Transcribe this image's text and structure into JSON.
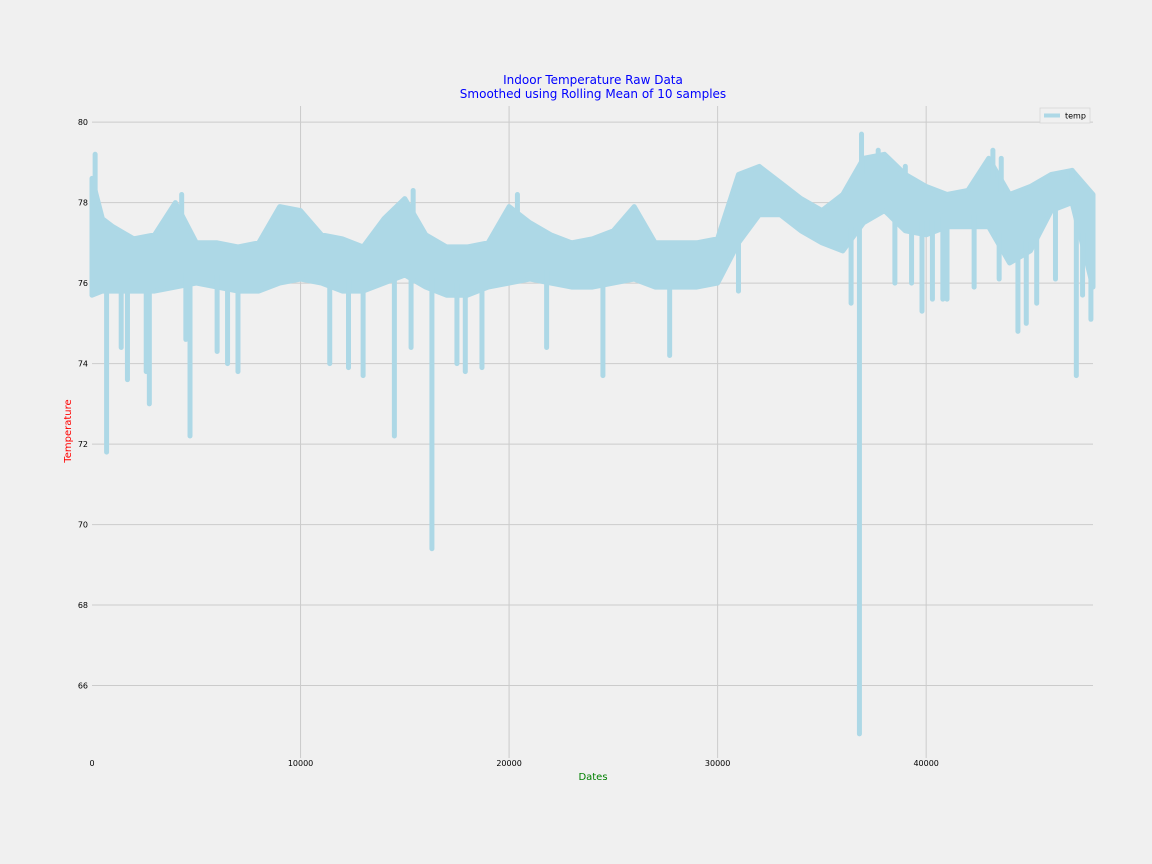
{
  "chart_data": {
    "type": "line",
    "title": "Indoor Temperature Raw Data",
    "subtitle": "Smoothed using Rolling Mean of 10 samples",
    "xlabel": "Dates",
    "ylabel": "Temperature",
    "xlim": [
      0,
      48000
    ],
    "ylim": [
      64.2,
      80.4
    ],
    "xticks": [
      0,
      10000,
      20000,
      30000,
      40000
    ],
    "yticks": [
      66,
      68,
      70,
      72,
      74,
      76,
      78,
      80
    ],
    "grid": true,
    "legend_position": "top-right",
    "colors": {
      "line": "#add8e6",
      "title": "#0000ff",
      "xlabel": "#008000",
      "ylabel": "#ff0000",
      "grid": "#cbcbcb",
      "background": "#f0f0f0"
    },
    "series": [
      {
        "name": "temp",
        "envelope": {
          "x": [
            0,
            500,
            1000,
            2000,
            3000,
            4000,
            5000,
            6000,
            7000,
            8000,
            9000,
            10000,
            11000,
            12000,
            13000,
            14000,
            15000,
            16000,
            17000,
            18000,
            19000,
            20000,
            21000,
            22000,
            23000,
            24000,
            25000,
            26000,
            27000,
            28000,
            29000,
            30000,
            31000,
            32000,
            33000,
            34000,
            35000,
            36000,
            37000,
            38000,
            39000,
            40000,
            41000,
            42000,
            43000,
            44000,
            45000,
            46000,
            47000,
            48000
          ],
          "low": [
            75.7,
            75.8,
            75.8,
            75.8,
            75.8,
            75.9,
            76.0,
            75.9,
            75.8,
            75.8,
            76.0,
            76.1,
            76.0,
            75.8,
            75.8,
            76.0,
            76.2,
            75.9,
            75.7,
            75.7,
            75.9,
            76.0,
            76.1,
            76.0,
            75.9,
            75.9,
            76.0,
            76.1,
            75.9,
            75.9,
            75.9,
            76.0,
            77.0,
            77.7,
            77.7,
            77.3,
            77.0,
            76.8,
            77.5,
            77.8,
            77.3,
            77.2,
            77.4,
            77.4,
            77.4,
            76.5,
            76.8,
            77.8,
            78.0,
            75.9
          ],
          "high": [
            78.6,
            77.6,
            77.4,
            77.1,
            77.2,
            78.0,
            77.0,
            77.0,
            76.9,
            77.0,
            77.9,
            77.8,
            77.2,
            77.1,
            76.9,
            77.6,
            78.1,
            77.2,
            76.9,
            76.9,
            77.0,
            77.9,
            77.5,
            77.2,
            77.0,
            77.1,
            77.3,
            77.9,
            77.0,
            77.0,
            77.0,
            77.1,
            78.7,
            78.9,
            78.5,
            78.1,
            77.8,
            78.2,
            79.1,
            79.2,
            78.7,
            78.4,
            78.2,
            78.3,
            79.1,
            78.2,
            78.4,
            78.7,
            78.8,
            78.2
          ]
        },
        "spikes": [
          {
            "x": 150,
            "value": 79.2
          },
          {
            "x": 700,
            "value": 71.8
          },
          {
            "x": 1400,
            "value": 74.4
          },
          {
            "x": 1700,
            "value": 73.6
          },
          {
            "x": 2600,
            "value": 73.8
          },
          {
            "x": 2750,
            "value": 73.0
          },
          {
            "x": 4300,
            "value": 78.2
          },
          {
            "x": 4500,
            "value": 74.6
          },
          {
            "x": 4700,
            "value": 72.2
          },
          {
            "x": 6000,
            "value": 74.3
          },
          {
            "x": 6500,
            "value": 74.0
          },
          {
            "x": 7000,
            "value": 73.8
          },
          {
            "x": 11400,
            "value": 74.0
          },
          {
            "x": 12300,
            "value": 73.9
          },
          {
            "x": 13000,
            "value": 73.7
          },
          {
            "x": 14500,
            "value": 72.2
          },
          {
            "x": 15300,
            "value": 74.4
          },
          {
            "x": 15400,
            "value": 78.3
          },
          {
            "x": 16300,
            "value": 69.4
          },
          {
            "x": 17500,
            "value": 74.0
          },
          {
            "x": 17900,
            "value": 73.8
          },
          {
            "x": 18700,
            "value": 73.9
          },
          {
            "x": 20400,
            "value": 78.2
          },
          {
            "x": 21800,
            "value": 74.4
          },
          {
            "x": 24500,
            "value": 73.7
          },
          {
            "x": 27700,
            "value": 74.2
          },
          {
            "x": 31000,
            "value": 75.8
          },
          {
            "x": 36400,
            "value": 75.5
          },
          {
            "x": 36800,
            "value": 64.8
          },
          {
            "x": 36900,
            "value": 79.7
          },
          {
            "x": 37700,
            "value": 79.3
          },
          {
            "x": 38500,
            "value": 76.0
          },
          {
            "x": 39000,
            "value": 78.9
          },
          {
            "x": 39300,
            "value": 76.0
          },
          {
            "x": 39800,
            "value": 75.3
          },
          {
            "x": 40300,
            "value": 75.6
          },
          {
            "x": 40800,
            "value": 75.6
          },
          {
            "x": 41000,
            "value": 75.6
          },
          {
            "x": 42300,
            "value": 75.9
          },
          {
            "x": 43200,
            "value": 79.3
          },
          {
            "x": 43500,
            "value": 76.1
          },
          {
            "x": 43600,
            "value": 79.1
          },
          {
            "x": 44400,
            "value": 74.8
          },
          {
            "x": 44800,
            "value": 75.0
          },
          {
            "x": 45300,
            "value": 75.5
          },
          {
            "x": 46200,
            "value": 76.1
          },
          {
            "x": 47000,
            "value": 78.8
          },
          {
            "x": 47200,
            "value": 73.7
          },
          {
            "x": 47500,
            "value": 75.7
          },
          {
            "x": 47900,
            "value": 75.1
          }
        ]
      }
    ]
  }
}
